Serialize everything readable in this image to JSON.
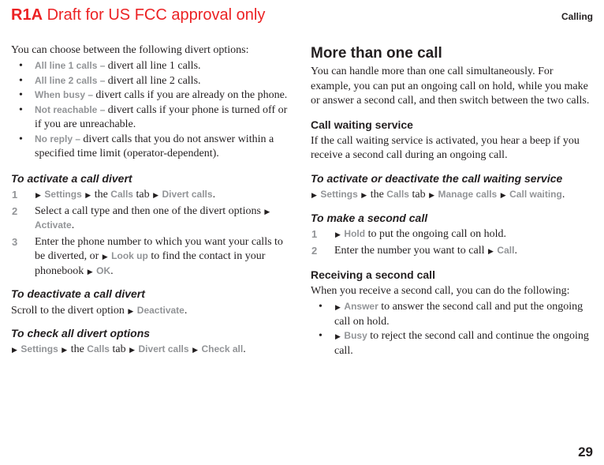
{
  "header": {
    "model": "R1A",
    "draft": " Draft for US FCC approval only",
    "section": "Calling"
  },
  "pageNum": "29",
  "col1": {
    "intro": "You can choose between the following divert options:",
    "b1_label": "All line 1 calls – ",
    "b1_text": "divert all line 1 calls.",
    "b2_label": "All line 2 calls – ",
    "b2_text": "divert all line 2 calls.",
    "b3_label": "When busy – ",
    "b3_text": "divert calls if you are already on the phone.",
    "b4_label": "Not reachable – ",
    "b4_text": "divert calls if your phone is turned off or if you are unreachable.",
    "b5_label": "No reply – ",
    "b5_text": "divert calls that you do not answer within a specified time limit (operator-dependent).",
    "sh1": "To activate a call divert",
    "s1a": "Settings",
    "s1b": " the ",
    "s1c": "Calls",
    "s1d": " tab ",
    "s1e": "Divert calls",
    "s2a": "Select a call type and then one of the divert options ",
    "s2b": "Activate",
    "s3a": "Enter the phone number to which you want your calls to be diverted, or ",
    "s3b": "Look up",
    "s3c": " to find the contact in your phonebook ",
    "s3d": "OK",
    "sh2": "To deactivate a call divert",
    "deact_a": " Scroll to the divert option ",
    "deact_b": "Deactivate",
    "sh3": "To check all divert options",
    "chk_a": "Settings",
    "chk_b": " the ",
    "chk_c": "Calls",
    "chk_d": " tab ",
    "chk_e": "Divert calls",
    "chk_f": "Check all"
  },
  "col2": {
    "h1": "More than one call",
    "p1": "You can handle more than one call simultaneously. For example, you can put an ongoing call on hold, while you make or answer a second call, and then switch between the two calls.",
    "h2a": "Call waiting service",
    "p2": "If the call waiting service is activated, you hear a beep if you receive a second call during an ongoing call.",
    "sh1": "To activate or deactivate the call waiting service",
    "aw_a": "Settings",
    "aw_b": " the ",
    "aw_c": "Calls",
    "aw_d": " tab ",
    "aw_e": "Manage calls",
    "aw_f": "Call waiting",
    "sh2": "To make a second call",
    "m1a": "Hold",
    "m1b": " to put the ongoing call on hold.",
    "m2a": "Enter the number you want to call ",
    "m2b": "Call",
    "h2b": "Receiving a second call",
    "p3": "When you receive a second call, you can do the following:",
    "r1a": "Answer",
    "r1b": " to answer the second call and put the ongoing call on hold.",
    "r2a": "Busy",
    "r2b": " to reject the second call and continue the ongoing call."
  }
}
